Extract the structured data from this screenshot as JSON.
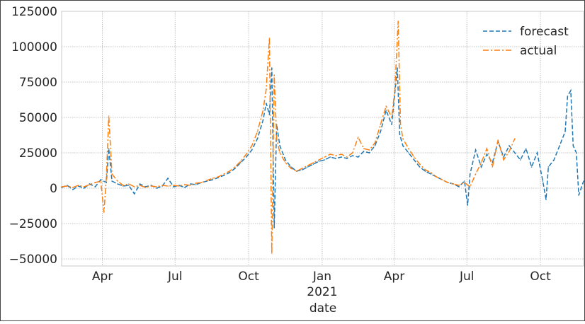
{
  "chart_data": {
    "type": "line",
    "title": "",
    "xlabel": "date",
    "ylabel": "",
    "x_axis": {
      "type": "date",
      "range": [
        "2020-02-10",
        "2021-11-24"
      ],
      "ticks": [
        {
          "date": "2020-04-01",
          "label": "Apr",
          "sublabel": ""
        },
        {
          "date": "2020-07-01",
          "label": "Jul",
          "sublabel": ""
        },
        {
          "date": "2020-10-01",
          "label": "Oct",
          "sublabel": ""
        },
        {
          "date": "2021-01-01",
          "label": "Jan",
          "sublabel": "2021"
        },
        {
          "date": "2021-04-01",
          "label": "Apr",
          "sublabel": ""
        },
        {
          "date": "2021-07-01",
          "label": "Jul",
          "sublabel": ""
        },
        {
          "date": "2021-10-01",
          "label": "Oct",
          "sublabel": ""
        }
      ]
    },
    "y_axis": {
      "range": [
        -55000,
        125000
      ],
      "ticks": [
        -50000,
        -25000,
        0,
        25000,
        50000,
        75000,
        100000,
        125000
      ],
      "tick_labels": [
        "−50000",
        "−25000",
        "0",
        "25000",
        "50000",
        "75000",
        "100000",
        "125000"
      ]
    },
    "grid": true,
    "legend": {
      "placement": "top-right",
      "entries": [
        "forecast",
        "actual"
      ]
    },
    "series": [
      {
        "name": "forecast",
        "color": "#1f77b4",
        "dash": "dashed",
        "points": [
          [
            "2020-02-10",
            500
          ],
          [
            "2020-02-17",
            2000
          ],
          [
            "2020-02-24",
            -1000
          ],
          [
            "2020-03-02",
            1500
          ],
          [
            "2020-03-09",
            0
          ],
          [
            "2020-03-16",
            3000
          ],
          [
            "2020-03-23",
            1000
          ],
          [
            "2020-03-30",
            6000
          ],
          [
            "2020-04-06",
            4000
          ],
          [
            "2020-04-09",
            28000
          ],
          [
            "2020-04-13",
            5000
          ],
          [
            "2020-04-20",
            3000
          ],
          [
            "2020-04-27",
            1500
          ],
          [
            "2020-05-04",
            2000
          ],
          [
            "2020-05-11",
            -4000
          ],
          [
            "2020-05-18",
            3000
          ],
          [
            "2020-05-25",
            1000
          ],
          [
            "2020-06-01",
            2000
          ],
          [
            "2020-06-08",
            0
          ],
          [
            "2020-06-15",
            1500
          ],
          [
            "2020-06-22",
            7000
          ],
          [
            "2020-06-29",
            1000
          ],
          [
            "2020-07-06",
            2000
          ],
          [
            "2020-07-13",
            500
          ],
          [
            "2020-07-20",
            3000
          ],
          [
            "2020-07-27",
            2500
          ],
          [
            "2020-08-03",
            4000
          ],
          [
            "2020-08-10",
            5000
          ],
          [
            "2020-08-17",
            6000
          ],
          [
            "2020-08-24",
            7500
          ],
          [
            "2020-08-31",
            9000
          ],
          [
            "2020-09-07",
            11000
          ],
          [
            "2020-09-14",
            14000
          ],
          [
            "2020-09-21",
            18000
          ],
          [
            "2020-09-28",
            22000
          ],
          [
            "2020-10-05",
            27000
          ],
          [
            "2020-10-12",
            35000
          ],
          [
            "2020-10-19",
            48000
          ],
          [
            "2020-10-23",
            60000
          ],
          [
            "2020-10-27",
            52000
          ],
          [
            "2020-10-30",
            85000
          ],
          [
            "2020-11-02",
            -28000
          ],
          [
            "2020-11-05",
            45000
          ],
          [
            "2020-11-09",
            30000
          ],
          [
            "2020-11-16",
            20000
          ],
          [
            "2020-11-23",
            15000
          ],
          [
            "2020-11-30",
            12000
          ],
          [
            "2020-12-07",
            13000
          ],
          [
            "2020-12-14",
            15000
          ],
          [
            "2020-12-21",
            17000
          ],
          [
            "2020-12-28",
            19000
          ],
          [
            "2021-01-04",
            20000
          ],
          [
            "2021-01-11",
            22000
          ],
          [
            "2021-01-18",
            21000
          ],
          [
            "2021-01-25",
            22000
          ],
          [
            "2021-02-01",
            21000
          ],
          [
            "2021-02-08",
            23000
          ],
          [
            "2021-02-15",
            22000
          ],
          [
            "2021-02-22",
            26000
          ],
          [
            "2021-03-01",
            25000
          ],
          [
            "2021-03-08",
            30000
          ],
          [
            "2021-03-15",
            40000
          ],
          [
            "2021-03-22",
            55000
          ],
          [
            "2021-03-29",
            45000
          ],
          [
            "2021-04-05",
            85000
          ],
          [
            "2021-04-08",
            38000
          ],
          [
            "2021-04-12",
            30000
          ],
          [
            "2021-04-19",
            25000
          ],
          [
            "2021-04-26",
            20000
          ],
          [
            "2021-05-03",
            15000
          ],
          [
            "2021-05-10",
            12000
          ],
          [
            "2021-05-17",
            10000
          ],
          [
            "2021-05-24",
            8000
          ],
          [
            "2021-05-31",
            6000
          ],
          [
            "2021-06-07",
            4000
          ],
          [
            "2021-06-14",
            3000
          ],
          [
            "2021-06-21",
            1000
          ],
          [
            "2021-06-28",
            5000
          ],
          [
            "2021-07-02",
            -12000
          ],
          [
            "2021-07-05",
            10000
          ],
          [
            "2021-07-12",
            27000
          ],
          [
            "2021-07-19",
            15000
          ],
          [
            "2021-07-26",
            24000
          ],
          [
            "2021-08-02",
            18000
          ],
          [
            "2021-08-09",
            33000
          ],
          [
            "2021-08-16",
            22000
          ],
          [
            "2021-08-23",
            30000
          ],
          [
            "2021-08-30",
            25000
          ],
          [
            "2021-09-06",
            20000
          ],
          [
            "2021-09-13",
            28000
          ],
          [
            "2021-09-20",
            15000
          ],
          [
            "2021-09-27",
            25000
          ],
          [
            "2021-10-04",
            5000
          ],
          [
            "2021-10-08",
            -8000
          ],
          [
            "2021-10-11",
            15000
          ],
          [
            "2021-10-18",
            20000
          ],
          [
            "2021-10-25",
            30000
          ],
          [
            "2021-11-01",
            40000
          ],
          [
            "2021-11-04",
            65000
          ],
          [
            "2021-11-08",
            69000
          ],
          [
            "2021-11-11",
            30000
          ],
          [
            "2021-11-15",
            25000
          ],
          [
            "2021-11-18",
            -5000
          ],
          [
            "2021-11-24",
            5000
          ]
        ]
      },
      {
        "name": "actual",
        "color": "#ff7f0e",
        "dash": "dashdot",
        "points": [
          [
            "2020-02-10",
            1000
          ],
          [
            "2020-02-17",
            1500
          ],
          [
            "2020-02-24",
            500
          ],
          [
            "2020-03-02",
            2000
          ],
          [
            "2020-03-09",
            1000
          ],
          [
            "2020-03-16",
            2500
          ],
          [
            "2020-03-23",
            4000
          ],
          [
            "2020-03-30",
            5000
          ],
          [
            "2020-04-03",
            -17000
          ],
          [
            "2020-04-06",
            8000
          ],
          [
            "2020-04-09",
            51000
          ],
          [
            "2020-04-13",
            10000
          ],
          [
            "2020-04-20",
            5000
          ],
          [
            "2020-04-27",
            2000
          ],
          [
            "2020-05-04",
            3000
          ],
          [
            "2020-05-11",
            1000
          ],
          [
            "2020-05-18",
            2000
          ],
          [
            "2020-05-25",
            500
          ],
          [
            "2020-06-01",
            1500
          ],
          [
            "2020-06-08",
            1000
          ],
          [
            "2020-06-15",
            2000
          ],
          [
            "2020-06-22",
            1500
          ],
          [
            "2020-06-29",
            2000
          ],
          [
            "2020-07-06",
            1500
          ],
          [
            "2020-07-13",
            2500
          ],
          [
            "2020-07-20",
            2000
          ],
          [
            "2020-07-27",
            3500
          ],
          [
            "2020-08-03",
            4000
          ],
          [
            "2020-08-10",
            5500
          ],
          [
            "2020-08-17",
            7000
          ],
          [
            "2020-08-24",
            8000
          ],
          [
            "2020-08-31",
            10000
          ],
          [
            "2020-09-07",
            12000
          ],
          [
            "2020-09-14",
            15000
          ],
          [
            "2020-09-21",
            19000
          ],
          [
            "2020-09-28",
            24000
          ],
          [
            "2020-10-05",
            30000
          ],
          [
            "2020-10-12",
            40000
          ],
          [
            "2020-10-19",
            55000
          ],
          [
            "2020-10-23",
            70000
          ],
          [
            "2020-10-27",
            106000
          ],
          [
            "2020-10-30",
            -46000
          ],
          [
            "2020-11-02",
            80000
          ],
          [
            "2020-11-05",
            35000
          ],
          [
            "2020-11-09",
            25000
          ],
          [
            "2020-11-16",
            18000
          ],
          [
            "2020-11-23",
            14000
          ],
          [
            "2020-11-30",
            12000
          ],
          [
            "2020-12-07",
            14000
          ],
          [
            "2020-12-14",
            16000
          ],
          [
            "2020-12-21",
            18000
          ],
          [
            "2020-12-28",
            20000
          ],
          [
            "2021-01-04",
            22000
          ],
          [
            "2021-01-11",
            24000
          ],
          [
            "2021-01-18",
            23000
          ],
          [
            "2021-01-25",
            24000
          ],
          [
            "2021-02-01",
            22000
          ],
          [
            "2021-02-08",
            25000
          ],
          [
            "2021-02-15",
            36000
          ],
          [
            "2021-02-22",
            28000
          ],
          [
            "2021-03-01",
            27000
          ],
          [
            "2021-03-08",
            32000
          ],
          [
            "2021-03-15",
            45000
          ],
          [
            "2021-03-22",
            58000
          ],
          [
            "2021-03-29",
            50000
          ],
          [
            "2021-04-02",
            70000
          ],
          [
            "2021-04-06",
            118000
          ],
          [
            "2021-04-09",
            45000
          ],
          [
            "2021-04-12",
            35000
          ],
          [
            "2021-04-19",
            28000
          ],
          [
            "2021-04-26",
            22000
          ],
          [
            "2021-05-03",
            17000
          ],
          [
            "2021-05-10",
            13000
          ],
          [
            "2021-05-17",
            11000
          ],
          [
            "2021-05-24",
            8000
          ],
          [
            "2021-05-31",
            6000
          ],
          [
            "2021-06-07",
            4000
          ],
          [
            "2021-06-14",
            3000
          ],
          [
            "2021-06-21",
            2000
          ],
          [
            "2021-06-28",
            4000
          ],
          [
            "2021-07-05",
            1000
          ],
          [
            "2021-07-12",
            10000
          ],
          [
            "2021-07-19",
            18000
          ],
          [
            "2021-07-26",
            28000
          ],
          [
            "2021-08-02",
            15000
          ],
          [
            "2021-08-09",
            34000
          ],
          [
            "2021-08-16",
            20000
          ],
          [
            "2021-08-23",
            26000
          ],
          [
            "2021-08-30",
            35000
          ]
        ]
      }
    ]
  }
}
